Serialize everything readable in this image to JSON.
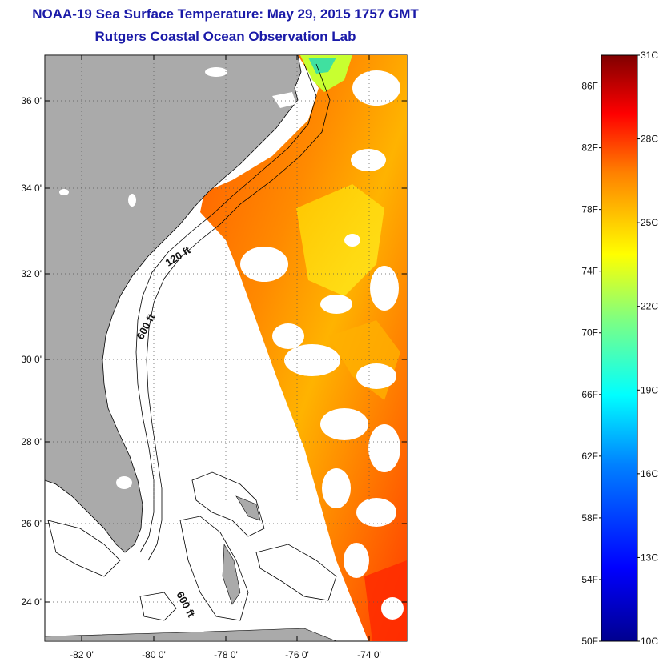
{
  "header": {
    "title": "NOAA-19 Sea Surface Temperature:  May 29, 2015 1757 GMT",
    "subtitle": "Rutgers Coastal Ocean Observation Lab"
  },
  "map": {
    "lat_labels": [
      "36 0'",
      "34 0'",
      "32 0'",
      "30 0'",
      "28 0'",
      "26 0'",
      "24 0'"
    ],
    "lon_labels": [
      "-82 0'",
      "-80 0'",
      "-78 0'",
      "-76 0'",
      "-74 0'"
    ],
    "depth_labels": [
      "120 ft",
      "600 ft",
      "600 ft"
    ]
  },
  "colorbar": {
    "fahrenheit_labels": [
      "86F",
      "82F",
      "78F",
      "74F",
      "70F",
      "66F",
      "62F",
      "58F",
      "54F",
      "50F"
    ],
    "celsius_labels": [
      "31C",
      "28C",
      "25C",
      "22C",
      "19C",
      "16C",
      "13C",
      "10C"
    ],
    "min_f": 50,
    "max_f": 88.0,
    "min_c": 10,
    "max_c": 31
  },
  "colors": {
    "title": "#1a1aa8",
    "land": "#aaaaaa",
    "colormap": [
      "#00008f",
      "#0000ff",
      "#0080ff",
      "#00ffff",
      "#80ff80",
      "#ffff00",
      "#ff8000",
      "#ff0000",
      "#800000"
    ]
  }
}
